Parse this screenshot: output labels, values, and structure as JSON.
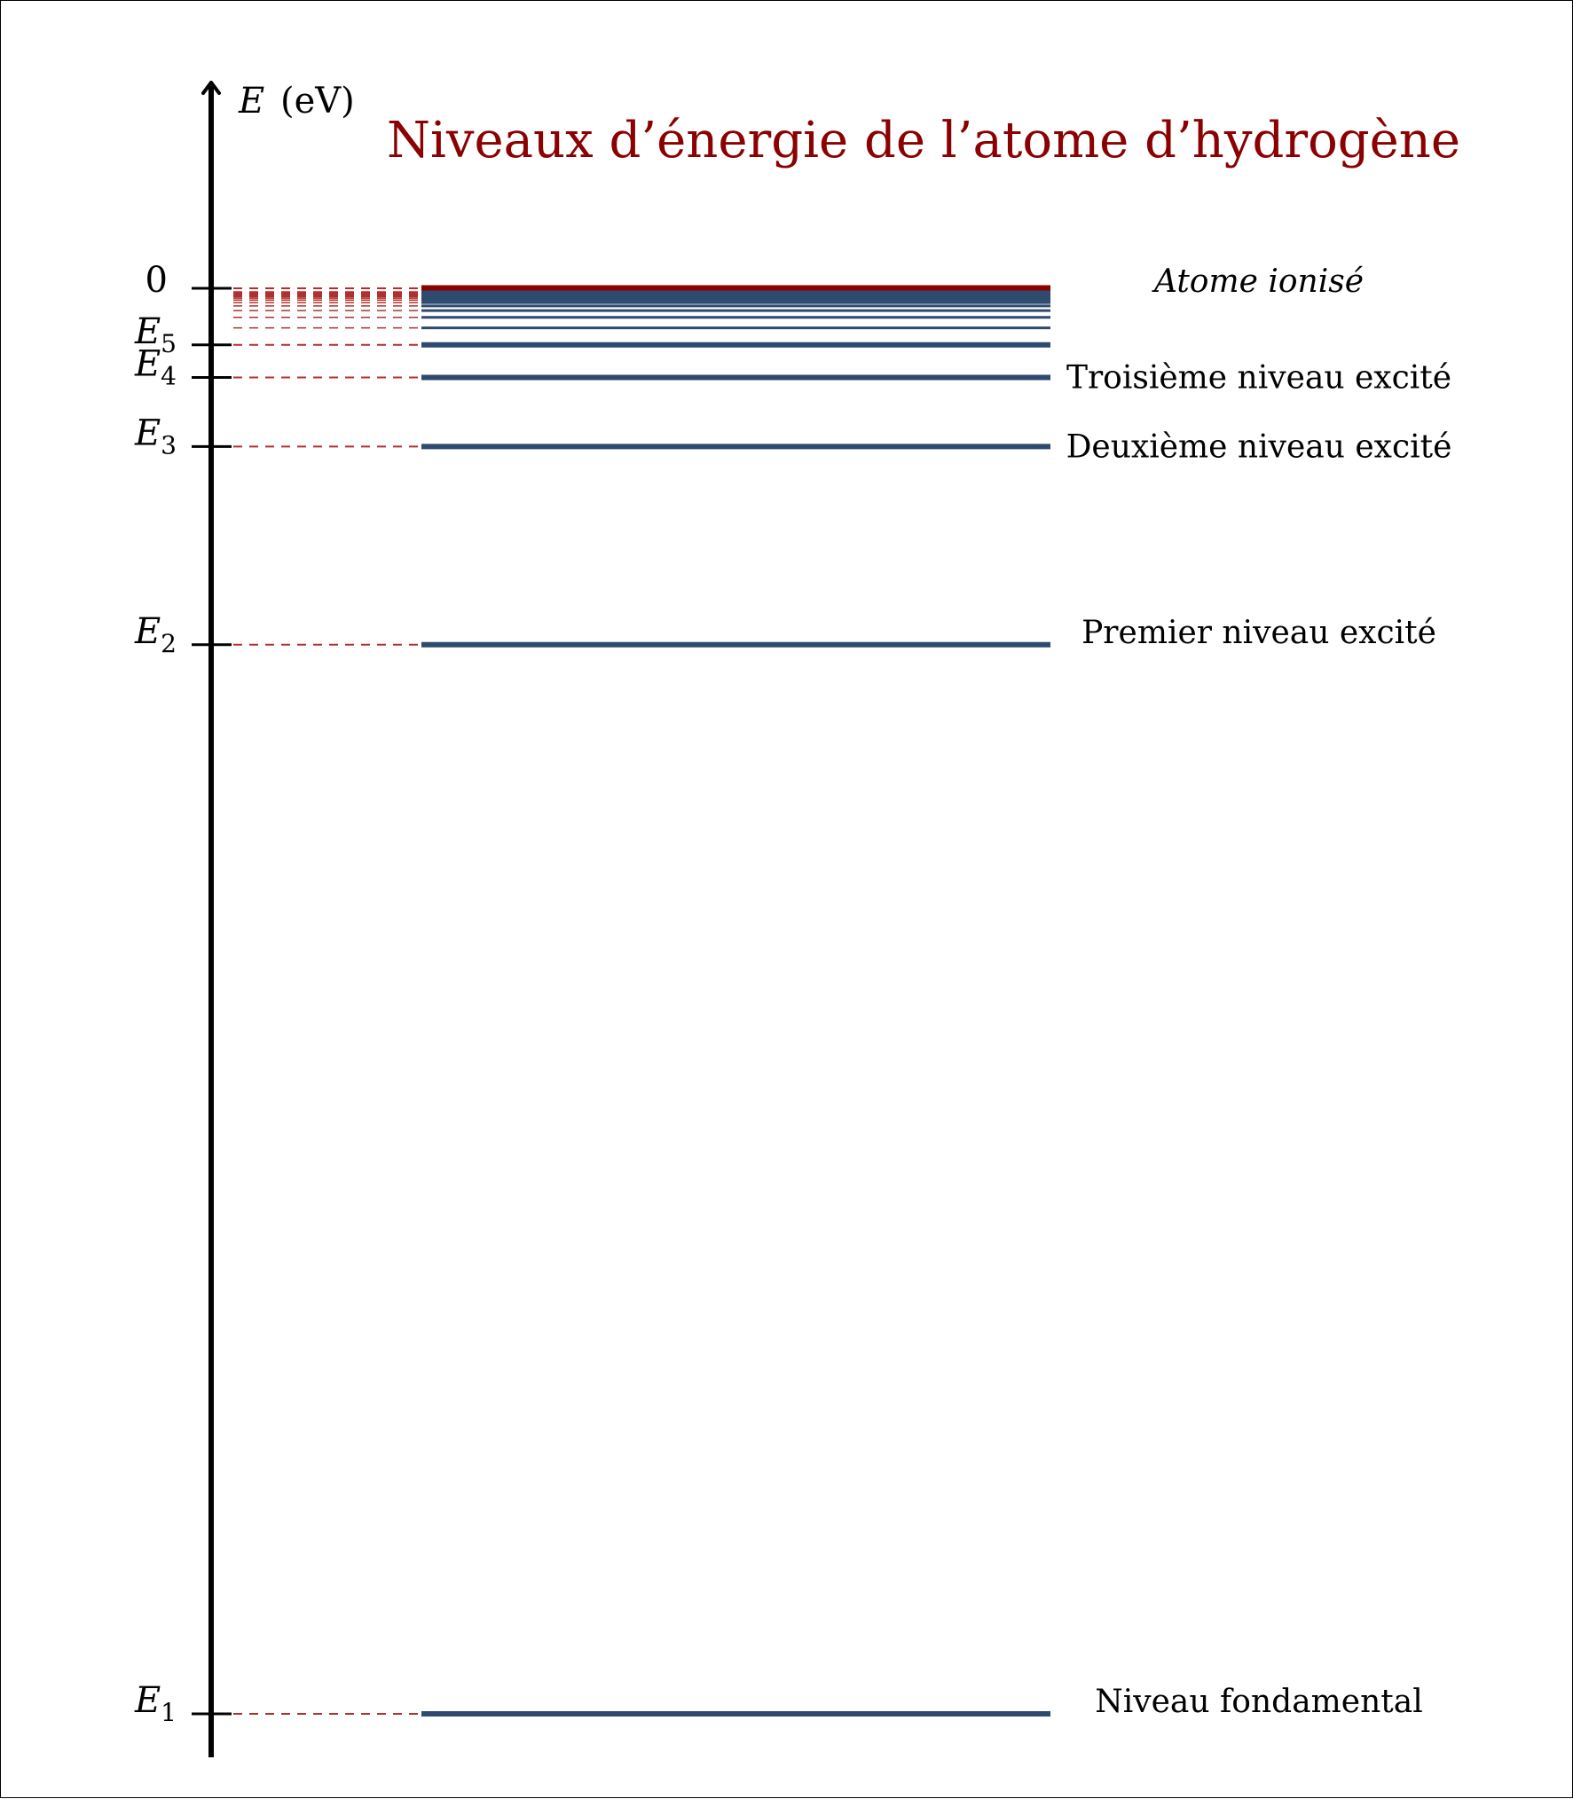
{
  "title": "Niveaux d’énergie de l’atome d’hydrogène",
  "axis": {
    "symbol": "E",
    "unit": "(eV)"
  },
  "colors": {
    "title": "#8b0000",
    "level": "#2e4a6e",
    "ionised": "#8b0000",
    "dashed": "#b03030",
    "axis": "#000000"
  },
  "chart_data": {
    "type": "energy-level-diagram",
    "zero_label": "0",
    "ionised_label": "Atome ionisé",
    "rydberg_ev": 13.6,
    "levels": [
      {
        "n": 1,
        "energy_ev": -13.6,
        "symbol": "E",
        "sub": "1",
        "name": "Niveau fondamental"
      },
      {
        "n": 2,
        "energy_ev": -3.4,
        "symbol": "E",
        "sub": "2",
        "name": "Premier niveau excité"
      },
      {
        "n": 3,
        "energy_ev": -1.51,
        "symbol": "E",
        "sub": "3",
        "name": "Deuxième niveau excité"
      },
      {
        "n": 4,
        "energy_ev": -0.85,
        "symbol": "E",
        "sub": "4",
        "name": "Troisième niveau excité"
      },
      {
        "n": 5,
        "energy_ev": -0.54,
        "symbol": "E",
        "sub": "5",
        "name": ""
      }
    ],
    "higher_levels_n": [
      6,
      7,
      8,
      9,
      10,
      11,
      12,
      13,
      14,
      15,
      16,
      17,
      18,
      19,
      20
    ]
  }
}
